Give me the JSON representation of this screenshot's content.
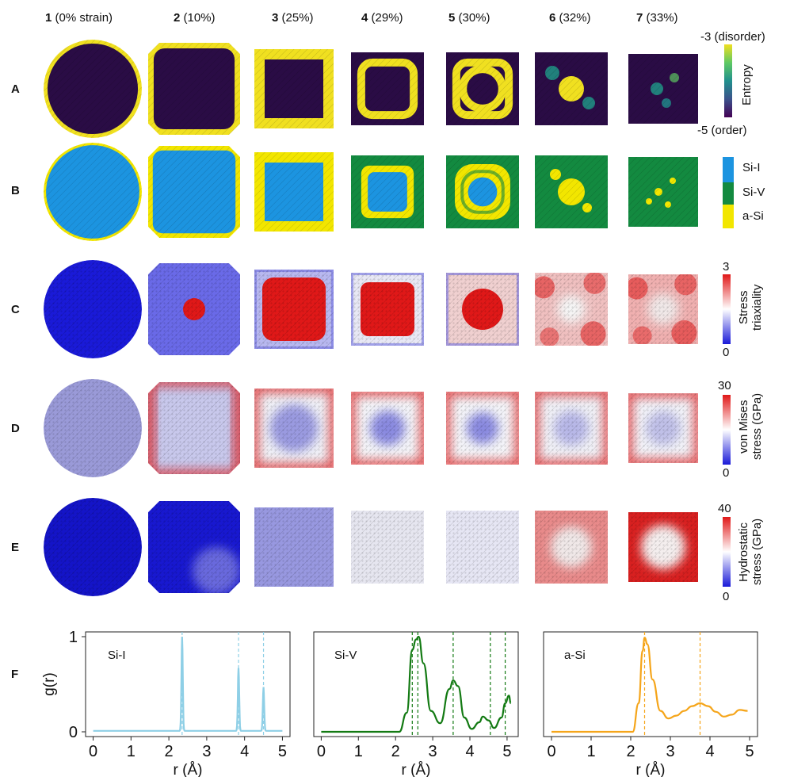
{
  "columns": [
    {
      "num": "1",
      "label": " (0% strain)"
    },
    {
      "num": "2",
      "label": " (10%)"
    },
    {
      "num": "3",
      "label": " (25%)"
    },
    {
      "num": "4",
      "label": " (29%)"
    },
    {
      "num": "5",
      "label": " (30%)"
    },
    {
      "num": "6",
      "label": " (32%)"
    },
    {
      "num": "7",
      "label": " (33%)"
    }
  ],
  "rows": [
    "A",
    "B",
    "C",
    "D",
    "E",
    "F"
  ],
  "legends": {
    "entropy": {
      "top": "-3 (disorder)",
      "bottom": "-5 (order)",
      "title": "Entropy"
    },
    "phase": {
      "items": [
        "Si-I",
        "Si-V",
        "a-Si"
      ],
      "colors": [
        "#1c94e0",
        "#138a40",
        "#f2e600"
      ]
    },
    "triaxiality": {
      "max": "3",
      "min": "0",
      "title1": "Stress",
      "title2": "triaxiality"
    },
    "von_mises": {
      "max": "30",
      "min": "0",
      "title1": "von Mises",
      "title2": "stress (GPa)"
    },
    "hydrostatic": {
      "max": "40",
      "min": "0",
      "title1": "Hydrostatic",
      "title2": "stress (GPa)"
    }
  },
  "colors": {
    "order": "#2a0c45",
    "disorder": "#f0e020",
    "si1": "#1c94e0",
    "si5": "#138a40",
    "asi": "#f2e600",
    "blue": "#1a1ad8",
    "red": "#e01818",
    "white": "#f2f2f2"
  },
  "chart_data": [
    {
      "type": "line",
      "title": "Si-I",
      "xlabel": "r (Å)",
      "ylabel": "g(r)",
      "xlim": [
        -0.2,
        5.2
      ],
      "ylim": [
        -0.05,
        1.05
      ],
      "xticks": [
        "0",
        "1",
        "2",
        "3",
        "4",
        "5"
      ],
      "yticks": [
        "0",
        "1"
      ],
      "color": "#8ecfe6",
      "peaks": [
        [
          2.35,
          1.0
        ],
        [
          3.84,
          0.66
        ],
        [
          4.5,
          0.46
        ]
      ],
      "vlines": [
        2.35,
        3.84,
        4.5
      ],
      "x": [
        0.0,
        2.2,
        2.35,
        2.5,
        3.7,
        3.84,
        3.98,
        4.4,
        4.5,
        4.6,
        5.0
      ],
      "y": [
        0.01,
        0.01,
        1.0,
        0.01,
        0.01,
        0.66,
        0.01,
        0.01,
        0.46,
        0.01,
        0.01
      ]
    },
    {
      "type": "line",
      "title": "Si-V",
      "xlabel": "r (Å)",
      "ylabel": "",
      "xlim": [
        -0.2,
        5.3
      ],
      "ylim": [
        -0.05,
        1.05
      ],
      "xticks": [
        "0",
        "1",
        "2",
        "3",
        "4",
        "5"
      ],
      "color": "#137a13",
      "vlines": [
        2.45,
        2.6,
        3.55,
        4.55,
        4.95
      ],
      "x": [
        0.0,
        2.1,
        2.3,
        2.45,
        2.55,
        2.62,
        2.75,
        2.95,
        3.2,
        3.45,
        3.55,
        3.68,
        3.85,
        4.05,
        4.25,
        4.35,
        4.5,
        4.65,
        4.85,
        4.95,
        5.05,
        5.1
      ],
      "y": [
        0.0,
        0.0,
        0.2,
        0.86,
        0.97,
        1.0,
        0.72,
        0.22,
        0.09,
        0.45,
        0.54,
        0.48,
        0.15,
        0.03,
        0.1,
        0.16,
        0.12,
        0.04,
        0.15,
        0.3,
        0.38,
        0.3
      ]
    },
    {
      "type": "line",
      "title": "a-Si",
      "xlabel": "r (Å)",
      "ylabel": "",
      "xlim": [
        -0.2,
        5.2
      ],
      "ylim": [
        -0.05,
        1.05
      ],
      "xticks": [
        "0",
        "1",
        "2",
        "3",
        "4",
        "5"
      ],
      "color": "#f5a51a",
      "vlines": [
        2.35,
        3.75
      ],
      "x": [
        0.0,
        2.05,
        2.2,
        2.3,
        2.35,
        2.42,
        2.55,
        2.75,
        2.95,
        3.15,
        3.35,
        3.55,
        3.75,
        3.95,
        4.15,
        4.35,
        4.55,
        4.75,
        4.95
      ],
      "y": [
        0.0,
        0.0,
        0.3,
        0.85,
        0.99,
        0.92,
        0.55,
        0.22,
        0.14,
        0.17,
        0.22,
        0.27,
        0.3,
        0.27,
        0.21,
        0.16,
        0.18,
        0.23,
        0.22
      ]
    }
  ]
}
